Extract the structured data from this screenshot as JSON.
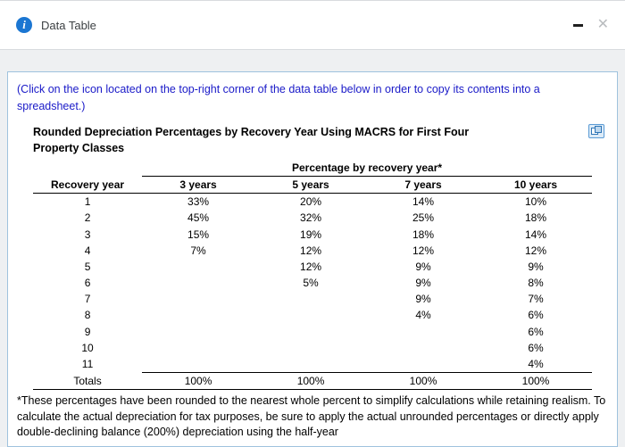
{
  "window": {
    "title": "Data Table"
  },
  "panel": {
    "instruction": "(Click on the icon located on the top-right corner of the data table below in order to copy its contents into a spreadsheet.)",
    "table_title": "Rounded Depreciation Percentages by Recovery Year Using MACRS for First Four Property Classes",
    "footnote": "*These percentages have been rounded to the nearest whole percent to simplify calculations while retaining realism. To calculate the actual depreciation for tax purposes, be sure to apply the actual unrounded percentages or directly apply double-declining balance (200%) depreciation using the half-year"
  },
  "chart_data": {
    "type": "table",
    "group_header": "Percentage by recovery year*",
    "columns": [
      "Recovery year",
      "3 years",
      "5 years",
      "7 years",
      "10 years"
    ],
    "rows": [
      [
        "1",
        "33%",
        "20%",
        "14%",
        "10%"
      ],
      [
        "2",
        "45%",
        "32%",
        "25%",
        "18%"
      ],
      [
        "3",
        "15%",
        "19%",
        "18%",
        "14%"
      ],
      [
        "4",
        "7%",
        "12%",
        "12%",
        "12%"
      ],
      [
        "5",
        "",
        "12%",
        "9%",
        "9%"
      ],
      [
        "6",
        "",
        "5%",
        "9%",
        "8%"
      ],
      [
        "7",
        "",
        "",
        "9%",
        "7%"
      ],
      [
        "8",
        "",
        "",
        "4%",
        "6%"
      ],
      [
        "9",
        "",
        "",
        "",
        "6%"
      ],
      [
        "10",
        "",
        "",
        "",
        "6%"
      ],
      [
        "11",
        "",
        "",
        "",
        "4%"
      ],
      [
        "Totals",
        "100%",
        "100%",
        "100%",
        "100%"
      ]
    ]
  }
}
